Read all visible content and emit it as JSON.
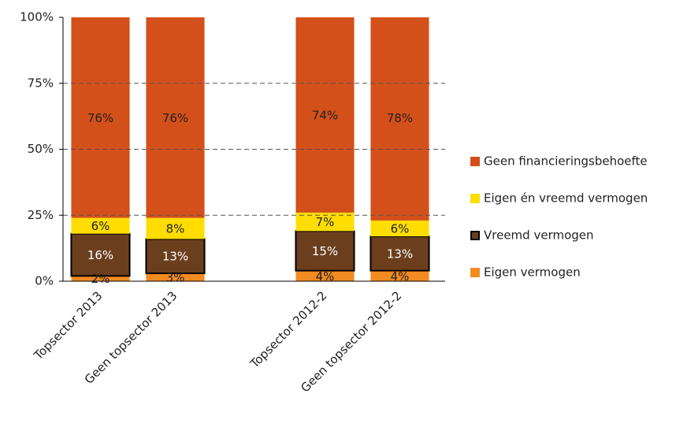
{
  "chart_data": {
    "type": "stacked_bar",
    "categories": [
      "Topsector 2013",
      "Geen topsector 2013",
      null,
      "Topsector 2012-2",
      "Geen topsector 2012-2"
    ],
    "series": [
      {
        "name": "Eigen vermogen",
        "color": "#f28b22",
        "values": [
          2,
          3,
          null,
          4,
          4
        ],
        "value_labels": [
          "2%",
          "3%",
          null,
          "4%",
          "4%"
        ]
      },
      {
        "name": "Vreemd vermogen",
        "color": "#6b3f1e",
        "edgecolor": "#000000",
        "values": [
          16,
          13,
          null,
          15,
          13
        ],
        "value_labels": [
          "16%",
          "13%",
          null,
          "15%",
          "13%"
        ]
      },
      {
        "name": "Eigen én vreemd vermogen",
        "color": "#ffdd00",
        "values": [
          6,
          8,
          null,
          7,
          6
        ],
        "value_labels": [
          "6%",
          "8%",
          null,
          "7%",
          "6%"
        ]
      },
      {
        "name": "Geen financieringsbehoefte",
        "color": "#d4501a",
        "values": [
          76,
          76,
          null,
          74,
          78
        ],
        "value_labels": [
          "76%",
          "76%",
          null,
          "74%",
          "78%"
        ]
      }
    ],
    "ylim": [
      0,
      100
    ],
    "yticks": [
      {
        "value": 0,
        "label": "0%"
      },
      {
        "value": 25,
        "label": "25%"
      },
      {
        "value": 50,
        "label": "50%"
      },
      {
        "value": 75,
        "label": "75%"
      },
      {
        "value": 100,
        "label": "100%"
      }
    ],
    "grid": true,
    "legend": "right"
  }
}
